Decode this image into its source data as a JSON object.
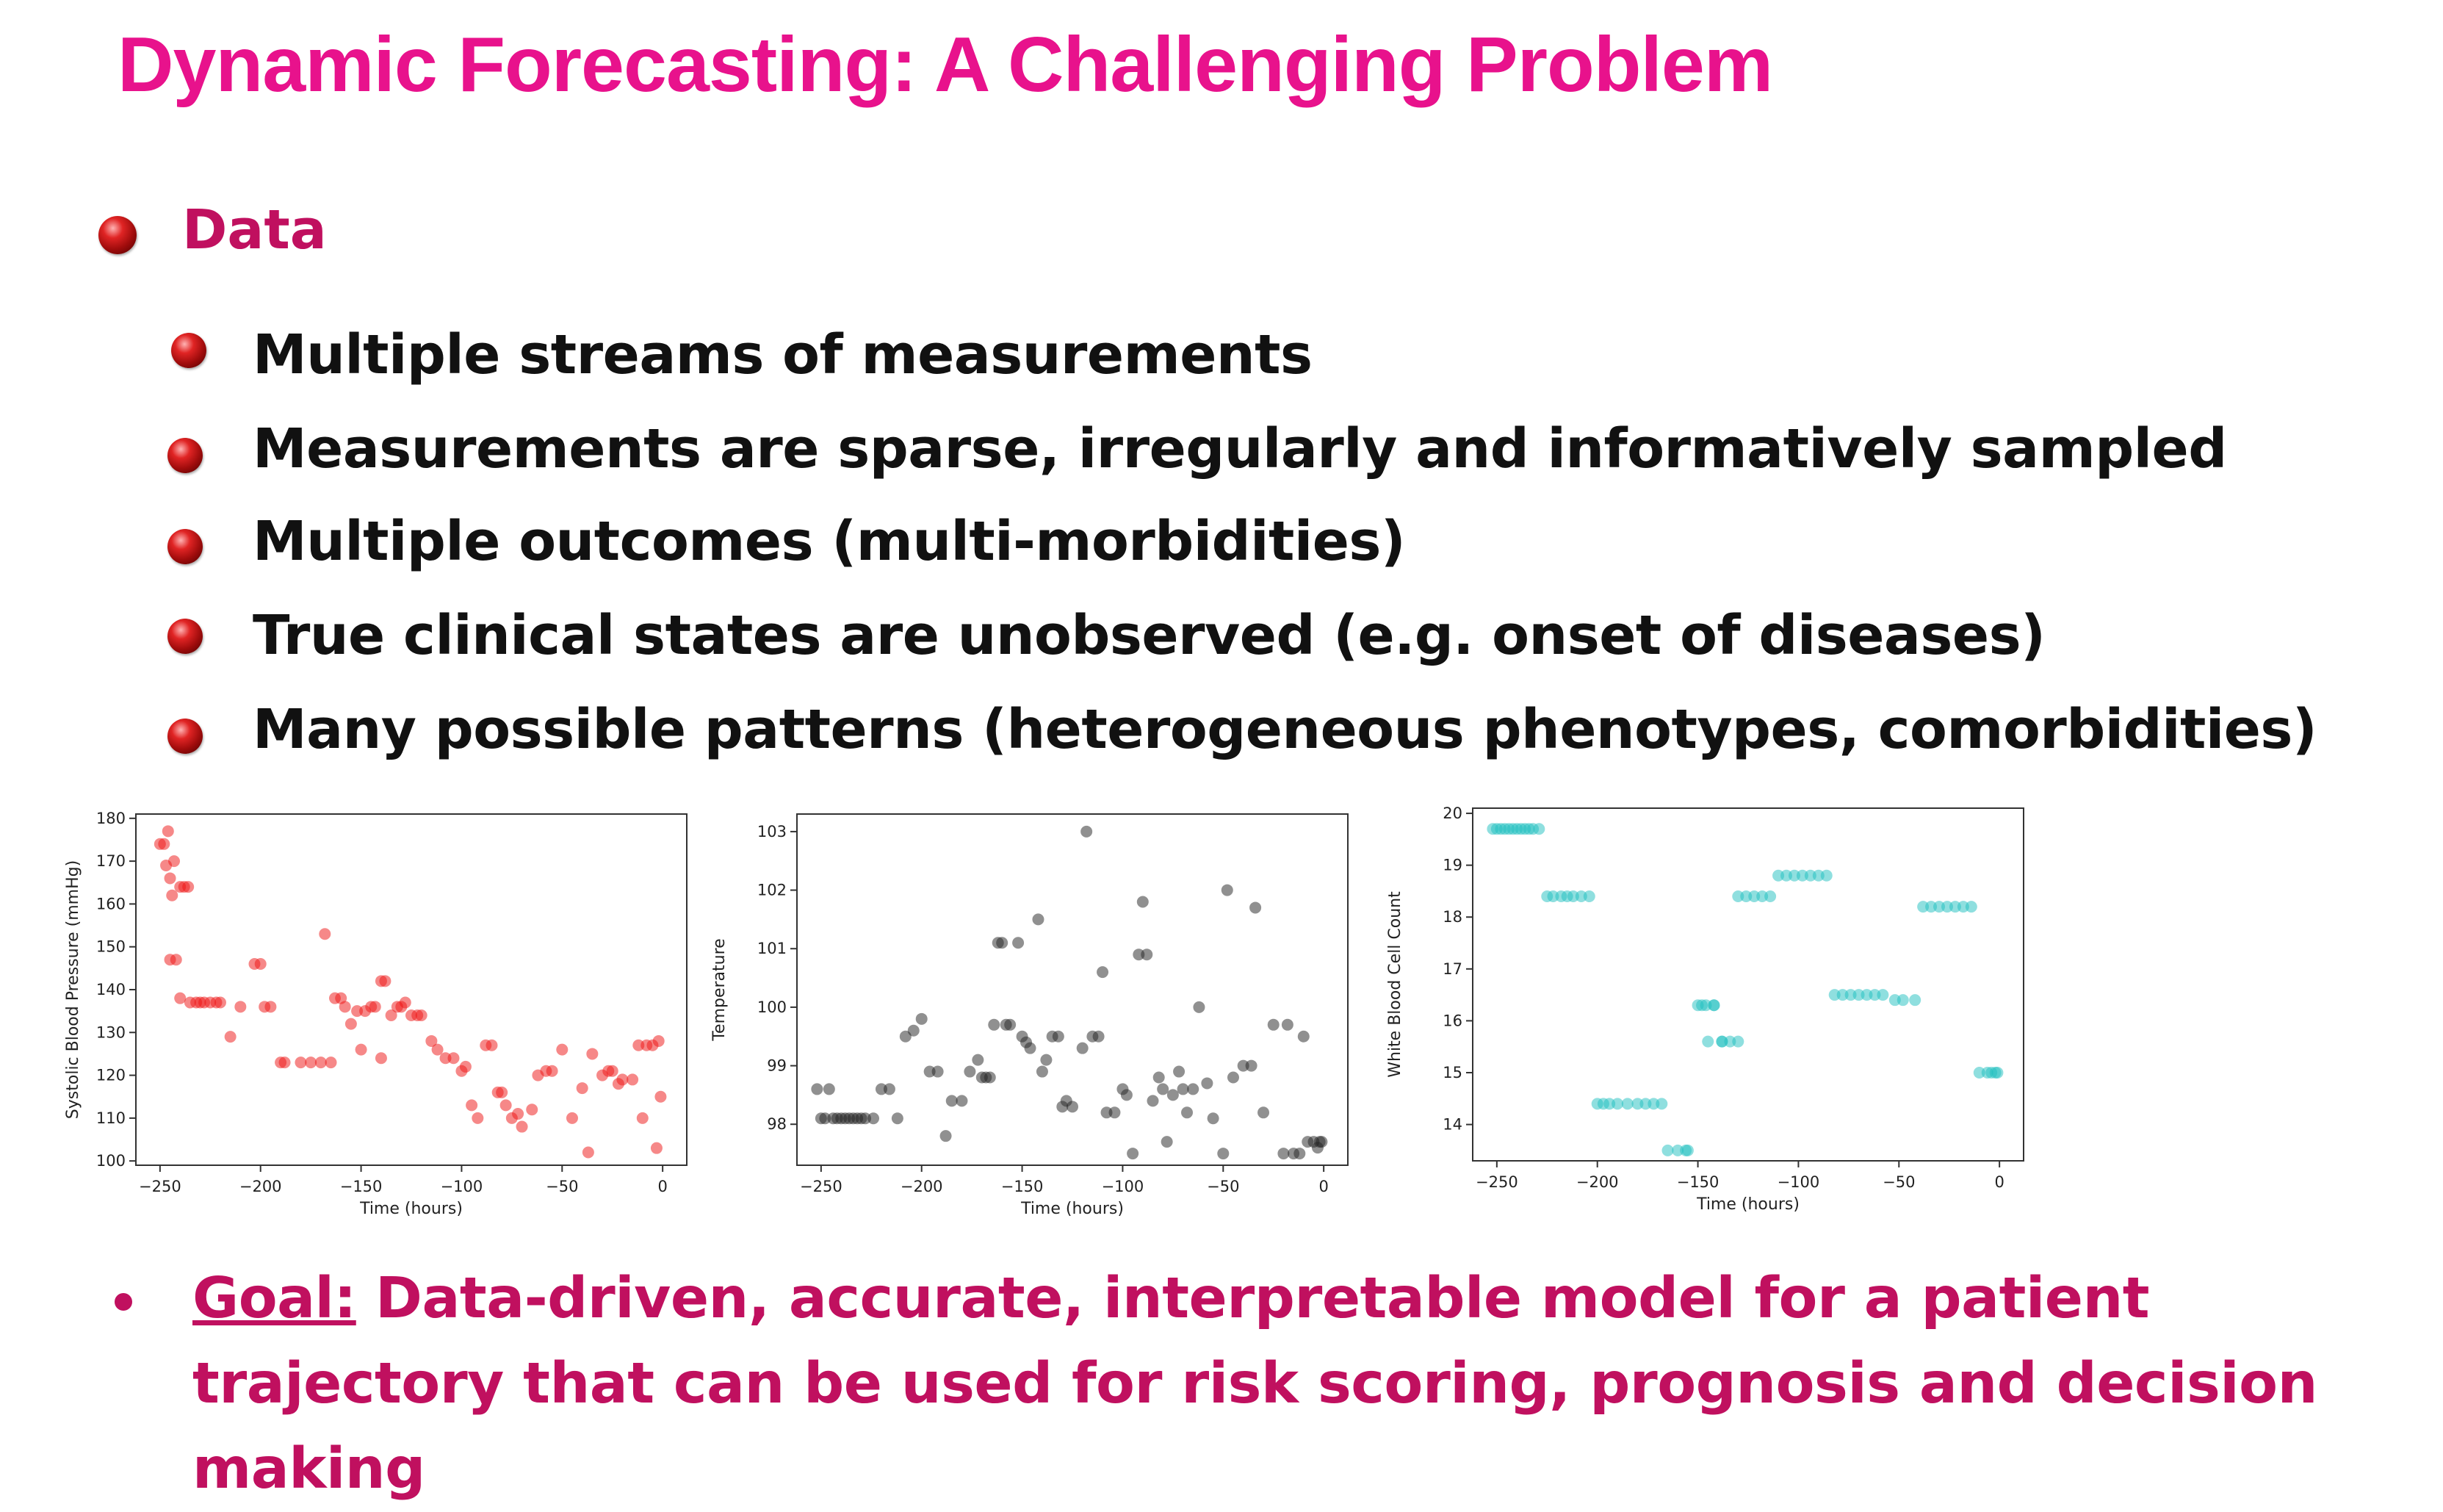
{
  "slide": {
    "title": "Dynamic Forecasting: A Challenging Problem",
    "section": "Data",
    "items": [
      "Multiple streams of measurements",
      "Measurements are sparse, irregularly and informatively sampled",
      "Multiple outcomes (multi-morbidities)",
      "True clinical states are unobserved (e.g. onset of diseases)",
      "Many possible patterns (heterogeneous phenotypes, comorbidities)"
    ],
    "goal_label": "Goal:",
    "goal_text": " Data-driven, accurate, interpretable model for a patient trajectory that can be used for risk scoring, prognosis and decision making"
  },
  "chart_data": [
    {
      "type": "scatter",
      "xlabel": "Time (hours)",
      "ylabel": "Systolic Blood Pressure (mmHg)",
      "xlim": [
        -262,
        12
      ],
      "ylim": [
        99,
        181
      ],
      "xticks": [
        -250,
        -200,
        -150,
        -100,
        -50,
        0
      ],
      "yticks": [
        100,
        110,
        120,
        130,
        140,
        150,
        160,
        170,
        180
      ],
      "color": "#ee1111",
      "x": [
        -250,
        -248,
        -246,
        -247,
        -245,
        -244,
        -243,
        -240,
        -238,
        -236,
        -245,
        -242,
        -240,
        -235,
        -232,
        -230,
        -228,
        -225,
        -222,
        -220,
        -215,
        -210,
        -203,
        -200,
        -198,
        -195,
        -190,
        -188,
        -180,
        -175,
        -170,
        -165,
        -163,
        -160,
        -158,
        -155,
        -152,
        -150,
        -148,
        -145,
        -143,
        -140,
        -138,
        -135,
        -132,
        -130,
        -128,
        -125,
        -122,
        -120,
        -115,
        -112,
        -108,
        -104,
        -100,
        -98,
        -95,
        -92,
        -88,
        -85,
        -82,
        -80,
        -78,
        -75,
        -72,
        -70,
        -65,
        -62,
        -58,
        -55,
        -50,
        -45,
        -40,
        -37,
        -35,
        -30,
        -27,
        -25,
        -22,
        -20,
        -15,
        -12,
        -10,
        -8,
        -5,
        -3,
        -2,
        -1,
        -168,
        -140
      ],
      "y": [
        174,
        174,
        177,
        169,
        166,
        162,
        170,
        164,
        164,
        164,
        147,
        147,
        138,
        137,
        137,
        137,
        137,
        137,
        137,
        137,
        129,
        136,
        146,
        146,
        136,
        136,
        123,
        123,
        123,
        123,
        123,
        123,
        138,
        138,
        136,
        132,
        135,
        126,
        135,
        136,
        136,
        142,
        142,
        134,
        136,
        136,
        137,
        134,
        134,
        134,
        128,
        126,
        124,
        124,
        121,
        122,
        113,
        110,
        127,
        127,
        116,
        116,
        113,
        110,
        111,
        108,
        112,
        120,
        121,
        121,
        126,
        110,
        117,
        102,
        125,
        120,
        121,
        121,
        118,
        119,
        119,
        127,
        110,
        127,
        127,
        103,
        128,
        115,
        153,
        124
      ]
    },
    {
      "type": "scatter",
      "xlabel": "Time (hours)",
      "ylabel": "Temperature",
      "xlim": [
        -262,
        12
      ],
      "ylim": [
        97.3,
        103.3
      ],
      "xticks": [
        -250,
        -200,
        -150,
        -100,
        -50,
        0
      ],
      "yticks": [
        98,
        99,
        100,
        101,
        102,
        103
      ],
      "color": "#222222",
      "x": [
        -252,
        -250,
        -248,
        -246,
        -244,
        -242,
        -240,
        -238,
        -236,
        -234,
        -232,
        -230,
        -228,
        -224,
        -220,
        -216,
        -212,
        -208,
        -204,
        -200,
        -196,
        -192,
        -188,
        -185,
        -180,
        -176,
        -172,
        -170,
        -168,
        -166,
        -164,
        -162,
        -160,
        -158,
        -156,
        -152,
        -150,
        -148,
        -146,
        -142,
        -140,
        -138,
        -135,
        -132,
        -130,
        -128,
        -125,
        -120,
        -118,
        -115,
        -112,
        -110,
        -108,
        -104,
        -100,
        -98,
        -95,
        -92,
        -90,
        -88,
        -85,
        -82,
        -80,
        -78,
        -75,
        -72,
        -70,
        -68,
        -65,
        -62,
        -58,
        -55,
        -50,
        -48,
        -45,
        -40,
        -36,
        -34,
        -30,
        -25,
        -20,
        -18,
        -15,
        -12,
        -10,
        -8,
        -5,
        -3,
        -2,
        -1
      ],
      "y": [
        98.6,
        98.1,
        98.1,
        98.6,
        98.1,
        98.1,
        98.1,
        98.1,
        98.1,
        98.1,
        98.1,
        98.1,
        98.1,
        98.1,
        98.6,
        98.6,
        98.1,
        99.5,
        99.6,
        99.8,
        98.9,
        98.9,
        97.8,
        98.4,
        98.4,
        98.9,
        99.1,
        98.8,
        98.8,
        98.8,
        99.7,
        101.1,
        101.1,
        99.7,
        99.7,
        101.1,
        99.5,
        99.4,
        99.3,
        101.5,
        98.9,
        99.1,
        99.5,
        99.5,
        98.3,
        98.4,
        98.3,
        99.3,
        103.0,
        99.5,
        99.5,
        100.6,
        98.2,
        98.2,
        98.6,
        98.5,
        97.5,
        100.9,
        101.8,
        100.9,
        98.4,
        98.8,
        98.6,
        97.7,
        98.5,
        98.9,
        98.6,
        98.2,
        98.6,
        100.0,
        98.7,
        98.1,
        97.5,
        102.0,
        98.8,
        99.0,
        99.0,
        101.7,
        98.2,
        99.7,
        97.5,
        99.7,
        97.5,
        97.5,
        99.5,
        97.7,
        97.7,
        97.6,
        97.7,
        97.7
      ]
    },
    {
      "type": "scatter",
      "xlabel": "Time (hours)",
      "ylabel": "White Blood Cell Count",
      "xlim": [
        -262,
        12
      ],
      "ylim": [
        13.3,
        20.1
      ],
      "xticks": [
        -250,
        -200,
        -150,
        -100,
        -50,
        0
      ],
      "yticks": [
        14,
        15,
        16,
        17,
        18,
        19,
        20
      ],
      "color": "#1fc0c0",
      "x": [
        -252,
        -250,
        -248,
        -246,
        -244,
        -242,
        -240,
        -238,
        -236,
        -234,
        -232,
        -229,
        -225,
        -222,
        -218,
        -215,
        -212,
        -208,
        -204,
        -200,
        -197,
        -194,
        -190,
        -185,
        -180,
        -176,
        -172,
        -168,
        -165,
        -160,
        -156,
        -150,
        -146,
        -142,
        -138,
        -134,
        -130,
        -126,
        -122,
        -118,
        -114,
        -110,
        -106,
        -102,
        -98,
        -94,
        -90,
        -86,
        -82,
        -78,
        -74,
        -70,
        -66,
        -62,
        -58,
        -52,
        -48,
        -42,
        -38,
        -34,
        -30,
        -26,
        -22,
        -18,
        -14,
        -10,
        -6,
        -4,
        -2,
        -1,
        -155,
        -145,
        -138,
        -148,
        -142,
        -130
      ],
      "y": [
        19.7,
        19.7,
        19.7,
        19.7,
        19.7,
        19.7,
        19.7,
        19.7,
        19.7,
        19.7,
        19.7,
        19.7,
        18.4,
        18.4,
        18.4,
        18.4,
        18.4,
        18.4,
        18.4,
        14.4,
        14.4,
        14.4,
        14.4,
        14.4,
        14.4,
        14.4,
        14.4,
        14.4,
        13.5,
        13.5,
        13.5,
        16.3,
        16.3,
        16.3,
        15.6,
        15.6,
        18.4,
        18.4,
        18.4,
        18.4,
        18.4,
        18.8,
        18.8,
        18.8,
        18.8,
        18.8,
        18.8,
        18.8,
        16.5,
        16.5,
        16.5,
        16.5,
        16.5,
        16.5,
        16.5,
        16.4,
        16.4,
        16.4,
        18.2,
        18.2,
        18.2,
        18.2,
        18.2,
        18.2,
        18.2,
        15.0,
        15.0,
        15.0,
        15.0,
        15.0,
        13.5,
        15.6,
        15.6,
        16.3,
        16.3,
        15.6
      ]
    }
  ]
}
